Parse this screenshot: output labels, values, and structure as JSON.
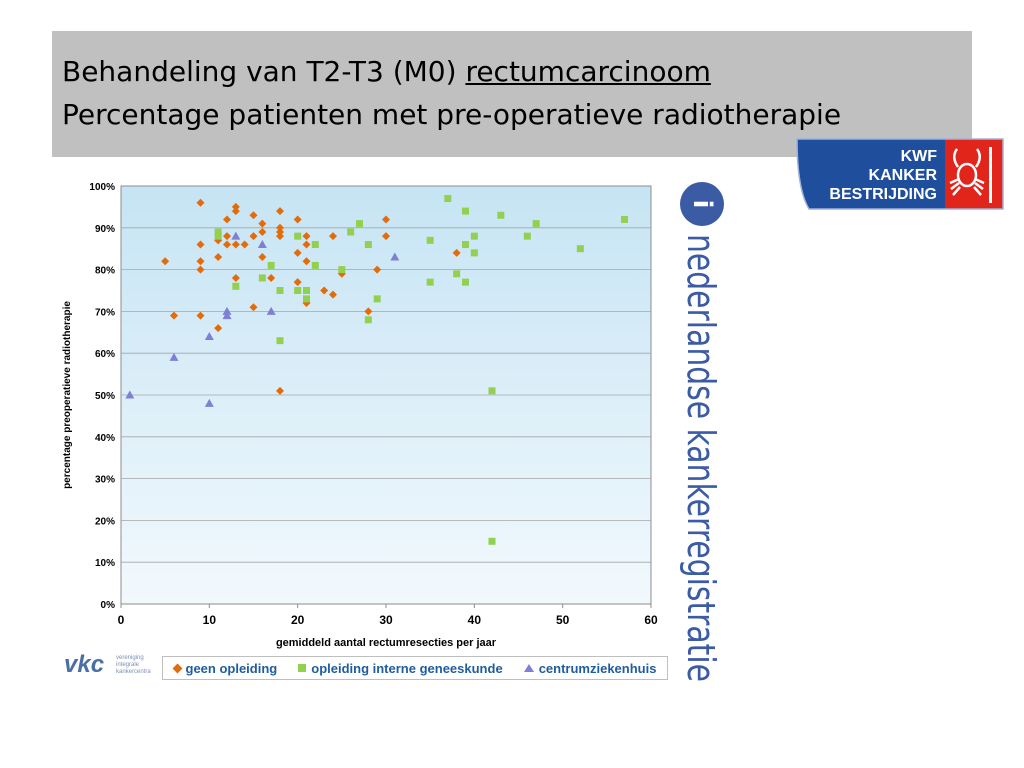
{
  "slide": {
    "title_line1_pre": "Behandeling van T2-T3 (M0) ",
    "title_line1_underlined": "rectumcarcinoom",
    "title_line2": "Percentage patienten met pre-operatieve radiotherapie"
  },
  "logos": {
    "kwf_lines": [
      "KWF",
      "KANKER",
      "BESTRIJDING"
    ],
    "nkr_text": "nederlandse kankerregistratie",
    "vkc_text": "vkc",
    "vkc_sub": [
      "vereniging",
      "integrale",
      "kankercentra"
    ]
  },
  "colors": {
    "plot_bg_top": "#c6e4f4",
    "plot_bg_bottom": "#f2f9fd",
    "geen_opleiding": "#e36c0a",
    "opleiding": "#92d050",
    "centrum": "#7f7fd5",
    "kwf_blue": "#1f4e9c",
    "kwf_red": "#e1251b",
    "nkr_blue": "#3b5ba5"
  },
  "chart_data": {
    "type": "scatter",
    "xlabel": "gemiddeld aantal rectumresecties per jaar",
    "ylabel": "percentage preoperatieve radiotherapie",
    "xlim": [
      0,
      60
    ],
    "ylim": [
      0,
      100
    ],
    "x_ticks": [
      "0",
      "10",
      "20",
      "30",
      "40",
      "50",
      "60"
    ],
    "y_ticks": [
      "0%",
      "10%",
      "20%",
      "30%",
      "40%",
      "50%",
      "60%",
      "70%",
      "80%",
      "90%",
      "100%"
    ],
    "grid": "horizontal",
    "legend_position": "bottom",
    "series": [
      {
        "name": "geen opleiding",
        "marker": "diamond",
        "points": [
          [
            5,
            82
          ],
          [
            6,
            69
          ],
          [
            9,
            96
          ],
          [
            9,
            86
          ],
          [
            9,
            82
          ],
          [
            9,
            80
          ],
          [
            9,
            69
          ],
          [
            11,
            87
          ],
          [
            11,
            83
          ],
          [
            11,
            66
          ],
          [
            12,
            92
          ],
          [
            12,
            88
          ],
          [
            12,
            86
          ],
          [
            13,
            95
          ],
          [
            13,
            94
          ],
          [
            13,
            86
          ],
          [
            13,
            78
          ],
          [
            14,
            86
          ],
          [
            15,
            93
          ],
          [
            15,
            88
          ],
          [
            15,
            71
          ],
          [
            16,
            91
          ],
          [
            16,
            89
          ],
          [
            16,
            83
          ],
          [
            17,
            78
          ],
          [
            18,
            94
          ],
          [
            18,
            90
          ],
          [
            18,
            89
          ],
          [
            18,
            88
          ],
          [
            18,
            51
          ],
          [
            20,
            92
          ],
          [
            20,
            84
          ],
          [
            20,
            77
          ],
          [
            21,
            88
          ],
          [
            21,
            86
          ],
          [
            21,
            82
          ],
          [
            21,
            72
          ],
          [
            23,
            75
          ],
          [
            24,
            88
          ],
          [
            24,
            74
          ],
          [
            25,
            79
          ],
          [
            28,
            70
          ],
          [
            29,
            80
          ],
          [
            30,
            92
          ],
          [
            30,
            88
          ],
          [
            38,
            84
          ]
        ]
      },
      {
        "name": "opleiding interne geneeskunde",
        "marker": "square",
        "points": [
          [
            11,
            89
          ],
          [
            11,
            88
          ],
          [
            13,
            76
          ],
          [
            16,
            78
          ],
          [
            17,
            81
          ],
          [
            18,
            75
          ],
          [
            18,
            63
          ],
          [
            20,
            88
          ],
          [
            20,
            75
          ],
          [
            21,
            75
          ],
          [
            21,
            73
          ],
          [
            22,
            86
          ],
          [
            22,
            81
          ],
          [
            25,
            80
          ],
          [
            26,
            89
          ],
          [
            27,
            91
          ],
          [
            28,
            86
          ],
          [
            28,
            68
          ],
          [
            29,
            73
          ],
          [
            35,
            87
          ],
          [
            35,
            77
          ],
          [
            37,
            97
          ],
          [
            38,
            79
          ],
          [
            39,
            94
          ],
          [
            39,
            86
          ],
          [
            39,
            77
          ],
          [
            40,
            88
          ],
          [
            40,
            84
          ],
          [
            42,
            51
          ],
          [
            42,
            15
          ],
          [
            43,
            93
          ],
          [
            46,
            88
          ],
          [
            47,
            91
          ],
          [
            52,
            85
          ],
          [
            57,
            92
          ]
        ]
      },
      {
        "name": "centrumziekenhuis",
        "marker": "triangle",
        "points": [
          [
            1,
            50
          ],
          [
            6,
            59
          ],
          [
            10,
            64
          ],
          [
            10,
            48
          ],
          [
            12,
            70
          ],
          [
            12,
            69
          ],
          [
            13,
            88
          ],
          [
            16,
            86
          ],
          [
            17,
            70
          ],
          [
            31,
            83
          ]
        ]
      }
    ]
  }
}
